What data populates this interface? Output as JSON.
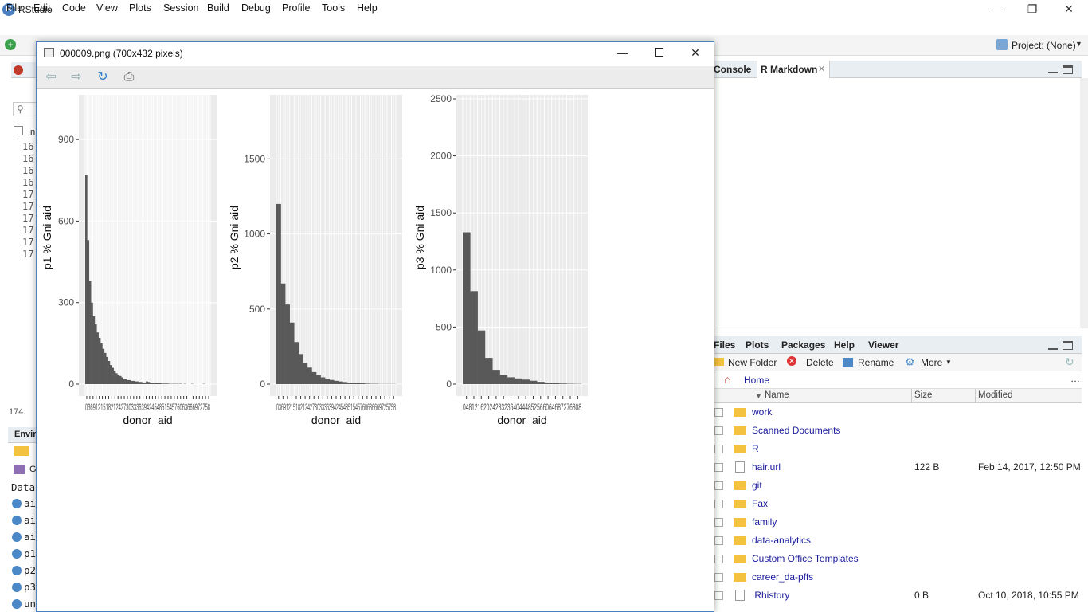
{
  "app": {
    "title": "RStudio",
    "icon": "R"
  },
  "window_controls": {
    "minimize": "—",
    "restore": "❐",
    "close": "✕"
  },
  "menu": [
    "File",
    "Edit",
    "Code",
    "View",
    "Plots",
    "Session",
    "Build",
    "Debug",
    "Profile",
    "Tools",
    "Help"
  ],
  "toolbar": {
    "project": "Project: (None)"
  },
  "left_pane": {
    "line_numbers": [
      "16",
      "16",
      "16",
      "16",
      "17",
      "17",
      "17",
      "17",
      "17",
      "17"
    ],
    "status_line": "174:",
    "env_tab": "Envir",
    "data_header": "Data",
    "env_rows": [
      "ai",
      "ai",
      "ai",
      "p1",
      "p2",
      "p3",
      "un"
    ],
    "search_label": "In",
    "go_label": "G"
  },
  "right_top": {
    "tabs": [
      "Console",
      "R Markdown"
    ]
  },
  "right_bottom": {
    "tabs": [
      "Files",
      "Plots",
      "Packages",
      "Help",
      "Viewer"
    ],
    "toolbar": {
      "new_folder": "New Folder",
      "delete": "Delete",
      "rename": "Rename",
      "more": "More"
    },
    "path": "Home",
    "columns": {
      "name": "Name",
      "size": "Size",
      "modified": "Modified"
    },
    "files": [
      {
        "name": "work",
        "size": "",
        "modified": "",
        "type": "folder"
      },
      {
        "name": "Scanned Documents",
        "size": "",
        "modified": "",
        "type": "folder"
      },
      {
        "name": "R",
        "size": "",
        "modified": "",
        "type": "folder"
      },
      {
        "name": "hair.url",
        "size": "122 B",
        "modified": "Feb 14, 2017, 12:50 PM",
        "type": "file"
      },
      {
        "name": "git",
        "size": "",
        "modified": "",
        "type": "folder"
      },
      {
        "name": "Fax",
        "size": "",
        "modified": "",
        "type": "folder"
      },
      {
        "name": "family",
        "size": "",
        "modified": "",
        "type": "folder"
      },
      {
        "name": "data-analytics",
        "size": "",
        "modified": "",
        "type": "folder"
      },
      {
        "name": "Custom Office Templates",
        "size": "",
        "modified": "",
        "type": "folder"
      },
      {
        "name": "career_da-pffs",
        "size": "",
        "modified": "",
        "type": "folder"
      },
      {
        "name": ".Rhistory",
        "size": "0 B",
        "modified": "Oct 10, 2018, 10:55 PM",
        "type": "file"
      }
    ]
  },
  "viewer": {
    "title": "000009.png (700x432 pixels)"
  },
  "chart_data": [
    {
      "type": "bar",
      "xlabel": "donor_aid",
      "ylabel": "p1 % Gni aid",
      "yticks": [
        0,
        300,
        600,
        900
      ],
      "ylim": [
        0,
        1050
      ],
      "xtick_text": "0369121518212427303336394245485154576063666972758",
      "values": [
        770,
        530,
        380,
        300,
        250,
        220,
        190,
        170,
        150,
        130,
        115,
        100,
        85,
        70,
        60,
        50,
        40,
        35,
        30,
        25,
        20,
        18,
        15,
        15,
        12,
        12,
        10,
        10,
        8,
        8,
        6,
        6,
        10,
        8,
        6,
        5,
        4,
        4,
        3,
        3,
        2,
        2,
        2,
        2,
        1,
        1,
        1,
        1,
        1,
        1,
        1,
        0,
        1,
        0,
        0,
        0,
        1,
        0,
        0,
        0,
        0,
        0,
        1,
        0,
        0,
        0
      ]
    },
    {
      "type": "bar",
      "xlabel": "donor_aid",
      "ylabel": "p2 % Gni aid",
      "yticks": [
        0,
        500,
        1000,
        1500
      ],
      "ylim": [
        0,
        1900
      ],
      "xtick_text": "03691215182124273033363942454851545760636669725758",
      "values": [
        1200,
        670,
        530,
        410,
        280,
        200,
        140,
        110,
        80,
        60,
        45,
        35,
        28,
        22,
        18,
        14,
        10,
        8,
        6,
        5,
        3,
        2,
        2,
        1,
        1,
        1,
        1
      ]
    },
    {
      "type": "bar",
      "xlabel": "donor_aid",
      "ylabel": "p3 % Gni aid",
      "yticks": [
        0,
        500,
        1000,
        1500,
        2000,
        2500
      ],
      "ylim": [
        0,
        2500
      ],
      "xtick_text": "0481216202428323640444852566064687276808",
      "values": [
        1330,
        815,
        470,
        230,
        125,
        80,
        60,
        50,
        40,
        30,
        20,
        12,
        8,
        5,
        3,
        2
      ]
    }
  ]
}
